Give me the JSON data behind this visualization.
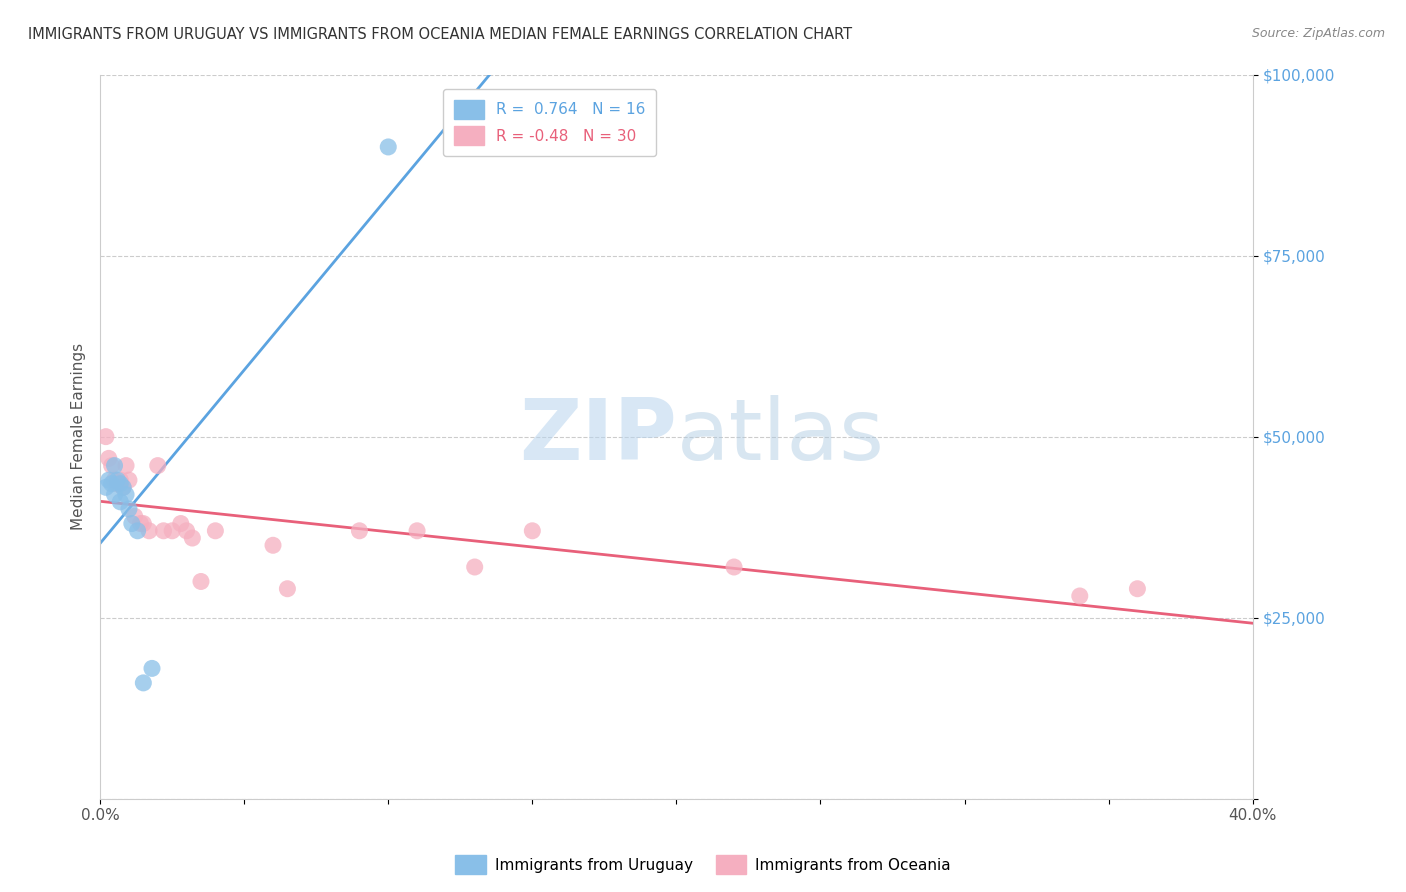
{
  "title": "IMMIGRANTS FROM URUGUAY VS IMMIGRANTS FROM OCEANIA MEDIAN FEMALE EARNINGS CORRELATION CHART",
  "source": "Source: ZipAtlas.com",
  "ylabel": "Median Female Earnings",
  "xlim": [
    0.0,
    0.4
  ],
  "ylim": [
    0,
    100000
  ],
  "xticks": [
    0.0,
    0.05,
    0.1,
    0.15,
    0.2,
    0.25,
    0.3,
    0.35,
    0.4
  ],
  "xticklabels": [
    "0.0%",
    "",
    "",
    "",
    "",
    "",
    "",
    "",
    "40.0%"
  ],
  "yticks": [
    0,
    25000,
    50000,
    75000,
    100000
  ],
  "yticklabels": [
    "",
    "$25,000",
    "$50,000",
    "$75,000",
    "$100,000"
  ],
  "uruguay_color": "#89bfe8",
  "oceania_color": "#f5afc0",
  "uruguay_line_color": "#5ba3e0",
  "oceania_line_color": "#e8607a",
  "R_uruguay": 0.764,
  "N_uruguay": 16,
  "R_oceania": -0.48,
  "N_oceania": 30,
  "uruguay_x": [
    0.002,
    0.003,
    0.004,
    0.005,
    0.005,
    0.006,
    0.007,
    0.007,
    0.008,
    0.009,
    0.01,
    0.011,
    0.013,
    0.015,
    0.018,
    0.1
  ],
  "uruguay_y": [
    43000,
    44000,
    43500,
    42000,
    46000,
    44000,
    41000,
    43500,
    43000,
    42000,
    40000,
    38000,
    37000,
    16000,
    18000,
    90000
  ],
  "oceania_x": [
    0.002,
    0.003,
    0.004,
    0.005,
    0.006,
    0.007,
    0.008,
    0.009,
    0.01,
    0.012,
    0.014,
    0.015,
    0.017,
    0.02,
    0.022,
    0.025,
    0.028,
    0.03,
    0.032,
    0.035,
    0.04,
    0.06,
    0.065,
    0.09,
    0.11,
    0.13,
    0.15,
    0.22,
    0.34,
    0.36
  ],
  "oceania_y": [
    50000,
    47000,
    46000,
    44000,
    43500,
    44000,
    43000,
    46000,
    44000,
    39000,
    38000,
    38000,
    37000,
    46000,
    37000,
    37000,
    38000,
    37000,
    36000,
    30000,
    37000,
    35000,
    29000,
    37000,
    37000,
    32000,
    37000,
    32000,
    28000,
    29000
  ],
  "watermark_zip": "ZIP",
  "watermark_atlas": "atlas",
  "background_color": "#ffffff",
  "grid_color": "#cccccc",
  "title_color": "#333333",
  "axis_label_color": "#555555",
  "ytick_color": "#5ba3e0",
  "xtick_color": "#555555",
  "source_color": "#888888"
}
